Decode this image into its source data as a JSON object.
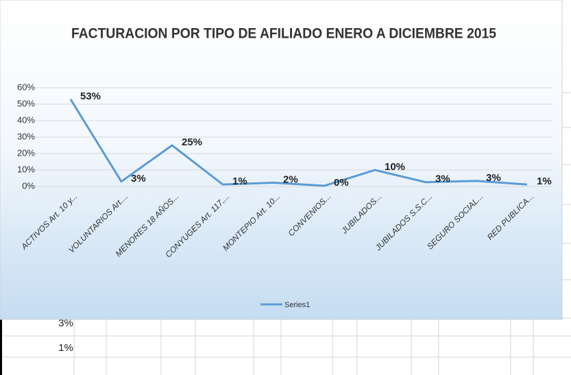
{
  "chart_data": {
    "type": "line",
    "title": "FACTURACION POR TIPO DE AFILIADO ENERO A DICIEMBRE 2015",
    "categories": [
      "ACTIVOS  Art. 10 y...",
      "VOLUNTARIOS   Art....",
      "MENORES 18 AÑOS...",
      "CONYUGES Art. 117,...",
      "MONTEPIO Art. 10...",
      "CONVENIOS...",
      "JUBILADOS...",
      "JUBILADOS  S.S.C...",
      "SEGURO SOCIAL...",
      "RED PUBLICA..."
    ],
    "series": [
      {
        "name": "Series1",
        "color": "#5b9bd5",
        "values": [
          53,
          3,
          25,
          1.2,
          2.3,
          0.4,
          10,
          2.6,
          3.4,
          1.2
        ],
        "value_labels": [
          "53%",
          "3%",
          "25%",
          "1%",
          "2%",
          "0%",
          "10%",
          "3%",
          "3%",
          "1%"
        ]
      }
    ],
    "ylim": [
      0,
      60
    ],
    "yticks": [
      {
        "value": 0,
        "label": "0%"
      },
      {
        "value": 10,
        "label": "10%"
      },
      {
        "value": 20,
        "label": "20%"
      },
      {
        "value": 30,
        "label": "30%"
      },
      {
        "value": 40,
        "label": "40%"
      },
      {
        "value": 50,
        "label": "50%"
      },
      {
        "value": 60,
        "label": "60%"
      }
    ],
    "grid": true,
    "legend": "bottom"
  },
  "sheet": {
    "cells": [
      "3%",
      "1%"
    ]
  }
}
